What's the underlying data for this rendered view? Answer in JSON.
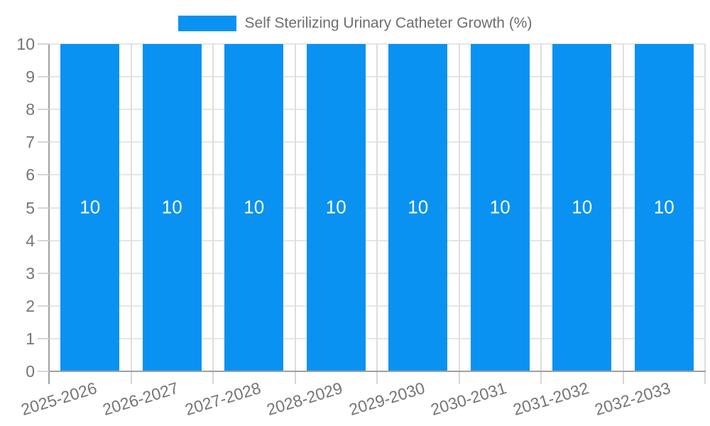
{
  "chart_data": {
    "type": "bar",
    "title": "Self Sterilizing Urinary Catheter Growth (%)",
    "legend": {
      "position": "top",
      "entries": [
        {
          "label": "Self Sterilizing Urinary Catheter Growth (%)",
          "color": "#0992f2"
        }
      ]
    },
    "categories": [
      "2025-2026",
      "2026-2027",
      "2027-2028",
      "2028-2029",
      "2029-2030",
      "2030-2031",
      "2031-2032",
      "2032-2033"
    ],
    "series": [
      {
        "name": "Self Sterilizing Urinary Catheter Growth (%)",
        "values": [
          10,
          10,
          10,
          10,
          10,
          10,
          10,
          10
        ]
      }
    ],
    "bar_value_labels": [
      "10",
      "10",
      "10",
      "10",
      "10",
      "10",
      "10",
      "10"
    ],
    "xlabel": "",
    "ylabel": "",
    "ylim": [
      0,
      10
    ],
    "yticks": [
      0,
      1,
      2,
      3,
      4,
      5,
      6,
      7,
      8,
      9,
      10
    ],
    "grid": true,
    "x_label_rotation_deg": -17
  },
  "colors": {
    "bar": "#0992f2",
    "bar_label": "#ffffff",
    "gridline": "#e6e6e6",
    "vertical_gridline": "#dedede",
    "axis_line": "#a0a0a0",
    "tick": "#d6d6d6",
    "axis_label": "#757575",
    "legend_text": "#6e6e6e",
    "background": "#ffffff"
  }
}
